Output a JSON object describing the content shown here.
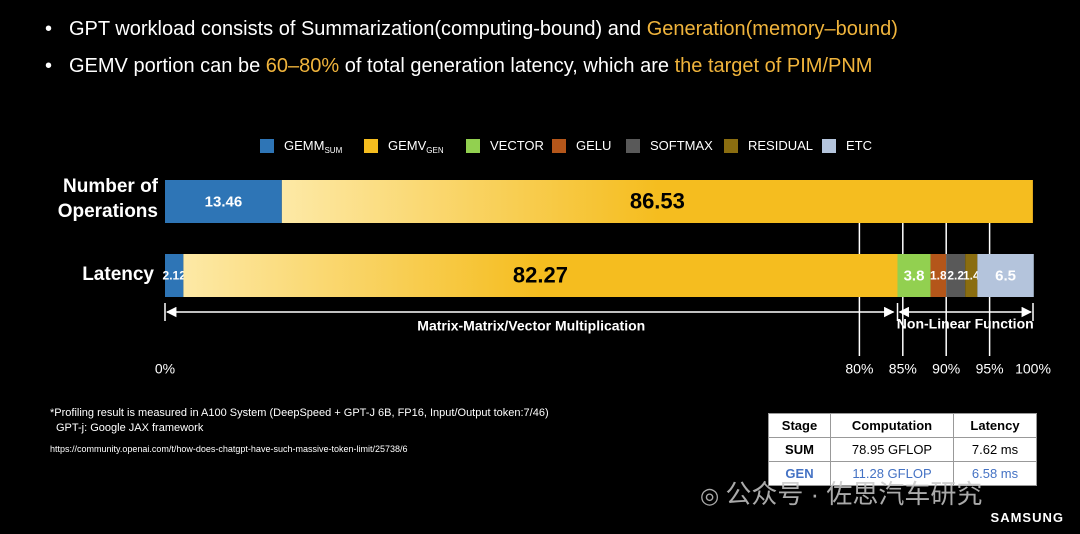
{
  "bullets": [
    [
      {
        "text": "GPT workload consists of Summarization(computing-bound) and ",
        "color": "#ffffff"
      },
      {
        "text": "Generation(memory–bound)",
        "color": "#f0b43c"
      }
    ],
    [
      {
        "text": "GEMV portion can be ",
        "color": "#ffffff"
      },
      {
        "text": "60–80%",
        "color": "#f0b43c"
      },
      {
        "text": " of total generation latency, which are ",
        "color": "#ffffff"
      },
      {
        "text": "the target of PIM/PNM",
        "color": "#f0b43c"
      }
    ]
  ],
  "chart_data": {
    "type": "stacked_barh",
    "categories": [
      "Number of Operations",
      "Latency"
    ],
    "series": [
      {
        "name": "GEMM",
        "name_sub": "SUM",
        "color": "#2e75b6",
        "values": [
          13.46,
          2.12
        ]
      },
      {
        "name": "GEMV",
        "name_sub": "GEN",
        "color": "#f5bd1f",
        "values": [
          86.53,
          82.27
        ]
      },
      {
        "name": "VECTOR",
        "color": "#92d050",
        "values": [
          null,
          3.8
        ]
      },
      {
        "name": "GELU",
        "color": "#b4561a",
        "values": [
          0.01,
          1.8
        ]
      },
      {
        "name": "SOFTMAX",
        "color": "#595959",
        "values": [
          null,
          2.2
        ]
      },
      {
        "name": "RESIDUAL",
        "color": "#8a6d10",
        "values": [
          null,
          1.4
        ]
      },
      {
        "name": "ETC",
        "color": "#b4c4dc",
        "values": [
          null,
          6.5
        ]
      }
    ],
    "xlim": [
      0,
      100
    ],
    "xticks": [
      {
        "value": 0,
        "label": "0%"
      },
      {
        "value": 80,
        "label": "80%"
      },
      {
        "value": 85,
        "label": "85%"
      },
      {
        "value": 90,
        "label": "90%"
      },
      {
        "value": 95,
        "label": "95%"
      },
      {
        "value": 100,
        "label": "100%"
      }
    ],
    "grid": true,
    "annotations": [
      "Matrix-Matrix/Vector Multiplication",
      "Non-Linear Function"
    ]
  },
  "footnotes": [
    "*Profiling result is measured in A100 System (DeepSpeed + GPT-J 6B, FP16, Input/Output token:7/46)",
    "GPT-j: Google JAX framework",
    "https://community.openai.com/t/how-does-chatgpt-have-such-massive-token-limit/25738/6"
  ],
  "table": {
    "header": [
      "Stage",
      "Computation",
      "Latency"
    ],
    "rows": [
      [
        "SUM",
        "78.95 GFLOP",
        "7.62 ms"
      ],
      [
        "GEN",
        "11.28 GFLOP",
        "6.58 ms"
      ]
    ]
  },
  "watermark": "公众号 · 佐思汽车研究",
  "logo": "SAMSUNG"
}
